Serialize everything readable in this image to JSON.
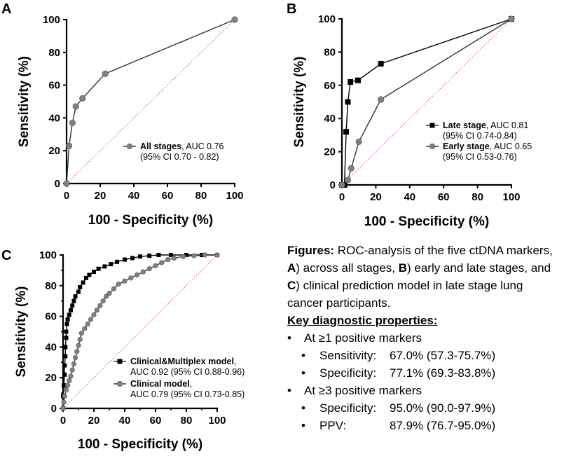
{
  "panels": {
    "A": {
      "letter": "A"
    },
    "B": {
      "letter": "B"
    },
    "C": {
      "letter": "C"
    }
  },
  "chart_data": [
    {
      "panel": "A",
      "type": "line",
      "xlabel": "100 - Specificity (%)",
      "ylabel": "Sensitivity (%)",
      "xlim": [
        0,
        100
      ],
      "ylim": [
        0,
        100
      ],
      "xticks": [
        "0",
        "20",
        "40",
        "60",
        "80",
        "100"
      ],
      "yticks": [
        "0",
        "20",
        "40",
        "60",
        "80",
        "100"
      ],
      "reference_line": {
        "from": [
          0,
          0
        ],
        "to": [
          100,
          100
        ],
        "style": "dotted",
        "color": "#d9534f"
      },
      "legend_position": "bottom-right",
      "series": [
        {
          "marker": "circle",
          "color": "#808080",
          "legend_bold": "All stages",
          "legend_rest": ", AUC 0.76",
          "legend_line2": "(95% CI 0.70 - 0.82)",
          "points": [
            [
              0,
              0
            ],
            [
              1.5,
              23
            ],
            [
              3.5,
              37
            ],
            [
              5.5,
              47
            ],
            [
              9.5,
              52
            ],
            [
              23,
              67
            ],
            [
              100,
              100
            ]
          ]
        }
      ]
    },
    {
      "panel": "B",
      "type": "line",
      "xlabel": "100 - Specificity (%)",
      "ylabel": "Sensitivity (%)",
      "xlim": [
        0,
        100
      ],
      "ylim": [
        0,
        100
      ],
      "xticks": [
        "0",
        "20",
        "40",
        "60",
        "80",
        "100"
      ],
      "yticks": [
        "0",
        "20",
        "40",
        "60",
        "80",
        "100"
      ],
      "reference_line": {
        "from": [
          0,
          0
        ],
        "to": [
          100,
          100
        ],
        "style": "dotted",
        "color": "#d9534f"
      },
      "legend_position": "center-right",
      "series": [
        {
          "marker": "square",
          "color": "#000000",
          "legend_bold": "Late stage",
          "legend_rest": ", AUC 0.81",
          "legend_line2": "(95% CI 0.74-0.84)",
          "points": [
            [
              0,
              0
            ],
            [
              1.5,
              0
            ],
            [
              2.5,
              32
            ],
            [
              3.5,
              50
            ],
            [
              5,
              62
            ],
            [
              9.5,
              63
            ],
            [
              23,
              73
            ],
            [
              100,
              100
            ]
          ]
        },
        {
          "marker": "circle",
          "color": "#808080",
          "legend_bold": "Early stage",
          "legend_rest": ", AUC 0.65",
          "legend_line2": "(95% CI 0.53-0.76)",
          "points": [
            [
              0,
              0
            ],
            [
              3.5,
              3
            ],
            [
              5.5,
              10
            ],
            [
              10,
              26
            ],
            [
              23,
              51.5
            ],
            [
              100,
              100
            ]
          ]
        }
      ]
    },
    {
      "panel": "C",
      "type": "line",
      "xlabel": "100 - Specificity (%)",
      "ylabel": "Sensitivity (%)",
      "xlim": [
        0,
        100
      ],
      "ylim": [
        0,
        100
      ],
      "xticks": [
        "0",
        "20",
        "40",
        "60",
        "80",
        "100"
      ],
      "yticks": [
        "0",
        "20",
        "40",
        "60",
        "80",
        "100"
      ],
      "reference_line": {
        "from": [
          0,
          0
        ],
        "to": [
          100,
          100
        ],
        "style": "dotted",
        "color": "#d9534f"
      },
      "legend_position": "bottom-right",
      "series": [
        {
          "marker": "square",
          "color": "#000000",
          "legend_bold": "Clinical&Multiplex model",
          "legend_rest": ",",
          "legend_line2": "AUC 0.92 (95% CI 0.88-0.96)",
          "points": [
            [
              0,
              0
            ],
            [
              0,
              8
            ],
            [
              0.5,
              15
            ],
            [
              1,
              22
            ],
            [
              1,
              28
            ],
            [
              1.5,
              34
            ],
            [
              1.5,
              40
            ],
            [
              2,
              46
            ],
            [
              2,
              50
            ],
            [
              2.5,
              55
            ],
            [
              3,
              58
            ],
            [
              4,
              61
            ],
            [
              5,
              64
            ],
            [
              6,
              67
            ],
            [
              7,
              70
            ],
            [
              8,
              73
            ],
            [
              10,
              76
            ],
            [
              11,
              79
            ],
            [
              13,
              82
            ],
            [
              15,
              85
            ],
            [
              17,
              87
            ],
            [
              20,
              89
            ],
            [
              23,
              91
            ],
            [
              27,
              92.5
            ],
            [
              31,
              94
            ],
            [
              35,
              95.5
            ],
            [
              40,
              97
            ],
            [
              45,
              98
            ],
            [
              50,
              99
            ],
            [
              56,
              99.5
            ],
            [
              62,
              100
            ],
            [
              70,
              100
            ],
            [
              80,
              100
            ],
            [
              90,
              100
            ],
            [
              100,
              100
            ]
          ]
        },
        {
          "marker": "circle",
          "color": "#808080",
          "legend_bold": "Clinical model",
          "legend_rest": ",",
          "legend_line2": "AUC 0.79 (95% CI 0.73-0.85)",
          "points": [
            [
              0,
              0
            ],
            [
              0.5,
              4
            ],
            [
              1,
              8
            ],
            [
              2,
              12
            ],
            [
              3,
              15
            ],
            [
              4,
              18
            ],
            [
              5,
              21
            ],
            [
              6,
              25
            ],
            [
              7,
              29
            ],
            [
              8,
              33
            ],
            [
              9,
              37
            ],
            [
              10,
              41
            ],
            [
              11,
              45
            ],
            [
              12,
              49
            ],
            [
              14,
              52
            ],
            [
              16,
              55
            ],
            [
              18,
              58
            ],
            [
              20,
              61
            ],
            [
              22,
              64
            ],
            [
              24,
              67
            ],
            [
              26,
              70
            ],
            [
              28,
              73
            ],
            [
              30,
              75
            ],
            [
              33,
              78
            ],
            [
              36,
              81
            ],
            [
              40,
              83
            ],
            [
              44,
              85
            ],
            [
              48,
              87
            ],
            [
              52,
              89
            ],
            [
              56,
              91
            ],
            [
              60,
              93
            ],
            [
              64,
              95
            ],
            [
              68,
              97
            ],
            [
              72,
              98
            ],
            [
              78,
              99
            ],
            [
              85,
              99.5
            ],
            [
              92,
              100
            ],
            [
              100,
              100
            ]
          ]
        }
      ]
    }
  ],
  "text": {
    "caption_bold": "Figures:",
    "caption_1": " ROC-analysis of the five ctDNA markers, ",
    "caption_A": "A",
    "caption_2": ") across all stages, ",
    "caption_B": "B",
    "caption_3": ") early and late stages, and ",
    "caption_C": "C",
    "caption_4": ") clinical prediction model in late stage lung cancer participants.",
    "key_title": "Key diagnostic properties:",
    "group1": "At ≥1 positive markers",
    "g1_sens_label": "Sensitivity:",
    "g1_sens_value": "67.0% (57.3-75.7%)",
    "g1_spec_label": "Specificity:",
    "g1_spec_value": "77.1% (69.3-83.8%)",
    "group2": "At ≥3 positive markers",
    "g2_spec_label": "Specificity:",
    "g2_spec_value": "95.0% (90.0-97.9%)",
    "g2_ppv_label": "PPV:",
    "g2_ppv_value": "87.9% (76.7-95.0%)"
  }
}
